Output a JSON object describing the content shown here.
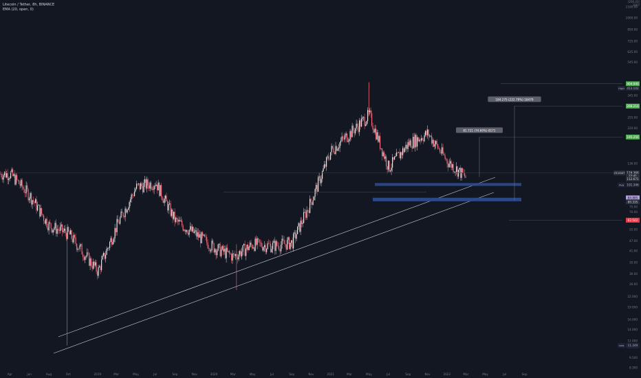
{
  "legend": {
    "symbol_line": "Litecoin / Tether, 8h, BINANCE",
    "indicator_line": "EMA (20, open, 0)"
  },
  "top_scale": [
    "(200,43)",
    "1007"
  ],
  "price_ticks": [
    "1160.00",
    "1000.00",
    "850.00",
    "725.00",
    "625.00",
    "545.00",
    "345.00",
    "295.00",
    "255.00",
    "220.00",
    "136.00",
    "75.00",
    "70.00",
    "55.00",
    "47.00",
    "41.00",
    "35.00",
    "30.00",
    "26.00",
    "22.000",
    "19.000",
    "16.000",
    "14.000",
    "12.000",
    "11.000",
    "9.500",
    "8.300"
  ],
  "time_ticks": [
    "Apr",
    "Jun",
    "Aug",
    "Oct",
    "2019",
    "Mar",
    "May",
    "Jul",
    "Sep",
    "Nov",
    "2020",
    "Mar",
    "May",
    "Jul",
    "Sep",
    "Nov",
    "2021",
    "Mar",
    "May",
    "Jul",
    "Sep",
    "Nov",
    "2022",
    "Mar",
    "May",
    "Jul",
    "Sep"
  ],
  "price_badges": [
    {
      "text": "404.940",
      "color": "#4caf50",
      "text_color": "#ffffff"
    },
    {
      "text": "413.102",
      "color": "#1e2235",
      "text_color": "#b2b5be",
      "prefix": "High"
    },
    {
      "text": "298.210",
      "color": "#4caf50",
      "text_color": "#ffffff"
    },
    {
      "text": "195.250",
      "color": "#4caf50",
      "text_color": "#ffffff"
    },
    {
      "text": "119.366",
      "color": "#2a2e39",
      "text_color": "#d1d4dc"
    },
    {
      "text": "22:41",
      "color": "#2a2e39",
      "text_color": "#d1d4dc"
    },
    {
      "text": "112.671",
      "color": "#2a2e39",
      "text_color": "#d1d4dc"
    },
    {
      "text": "101.346",
      "color": "#1e2235",
      "text_color": "#b2b5be",
      "prefix": "Avg"
    },
    {
      "text": "84.885",
      "color": "#b39ddb",
      "text_color": "#131722"
    },
    {
      "text": "80.335",
      "color": "#2a2e39",
      "text_color": "#d1d4dc"
    },
    {
      "text": "62.542",
      "color": "#f23645",
      "text_color": "#ffffff"
    },
    {
      "text": "11.249",
      "color": "#1e2235",
      "text_color": "#b2b5be",
      "prefix": "Low"
    }
  ],
  "symbol_flag": "LTCUSDT",
  "measure_labels": [
    "81.721 (74.60%) 8171",
    "184.275 (222.79%) 18479"
  ],
  "chart_data": {
    "type": "candlestick",
    "symbol": "LTCUSDT",
    "exchange": "BINANCE",
    "interval": "8h",
    "scale": "log",
    "ylim": [
      8.3,
      1160
    ],
    "x": [
      "2018-04",
      "2018-06",
      "2018-08",
      "2018-10",
      "2019-01",
      "2019-03",
      "2019-05",
      "2019-07",
      "2019-09",
      "2019-11",
      "2020-01",
      "2020-03",
      "2020-05",
      "2020-07",
      "2020-09",
      "2020-11",
      "2021-01",
      "2021-03",
      "2021-05",
      "2021-07",
      "2021-09",
      "2021-11",
      "2022-01",
      "2022-03"
    ],
    "close": [
      118,
      88,
      58,
      52,
      31,
      58,
      98,
      105,
      62,
      52,
      43,
      38,
      45,
      44,
      46,
      82,
      162,
      205,
      265,
      128,
      178,
      205,
      140,
      112
    ],
    "high_point": {
      "date": "2021-05",
      "price": 413.102
    },
    "low_point": {
      "date": "2018-12",
      "price": 11.249
    },
    "levels": [
      404.94,
      298.21,
      195.25,
      101.346,
      84.885,
      80.335,
      62.542
    ],
    "grid": false,
    "legend": "top-left"
  }
}
